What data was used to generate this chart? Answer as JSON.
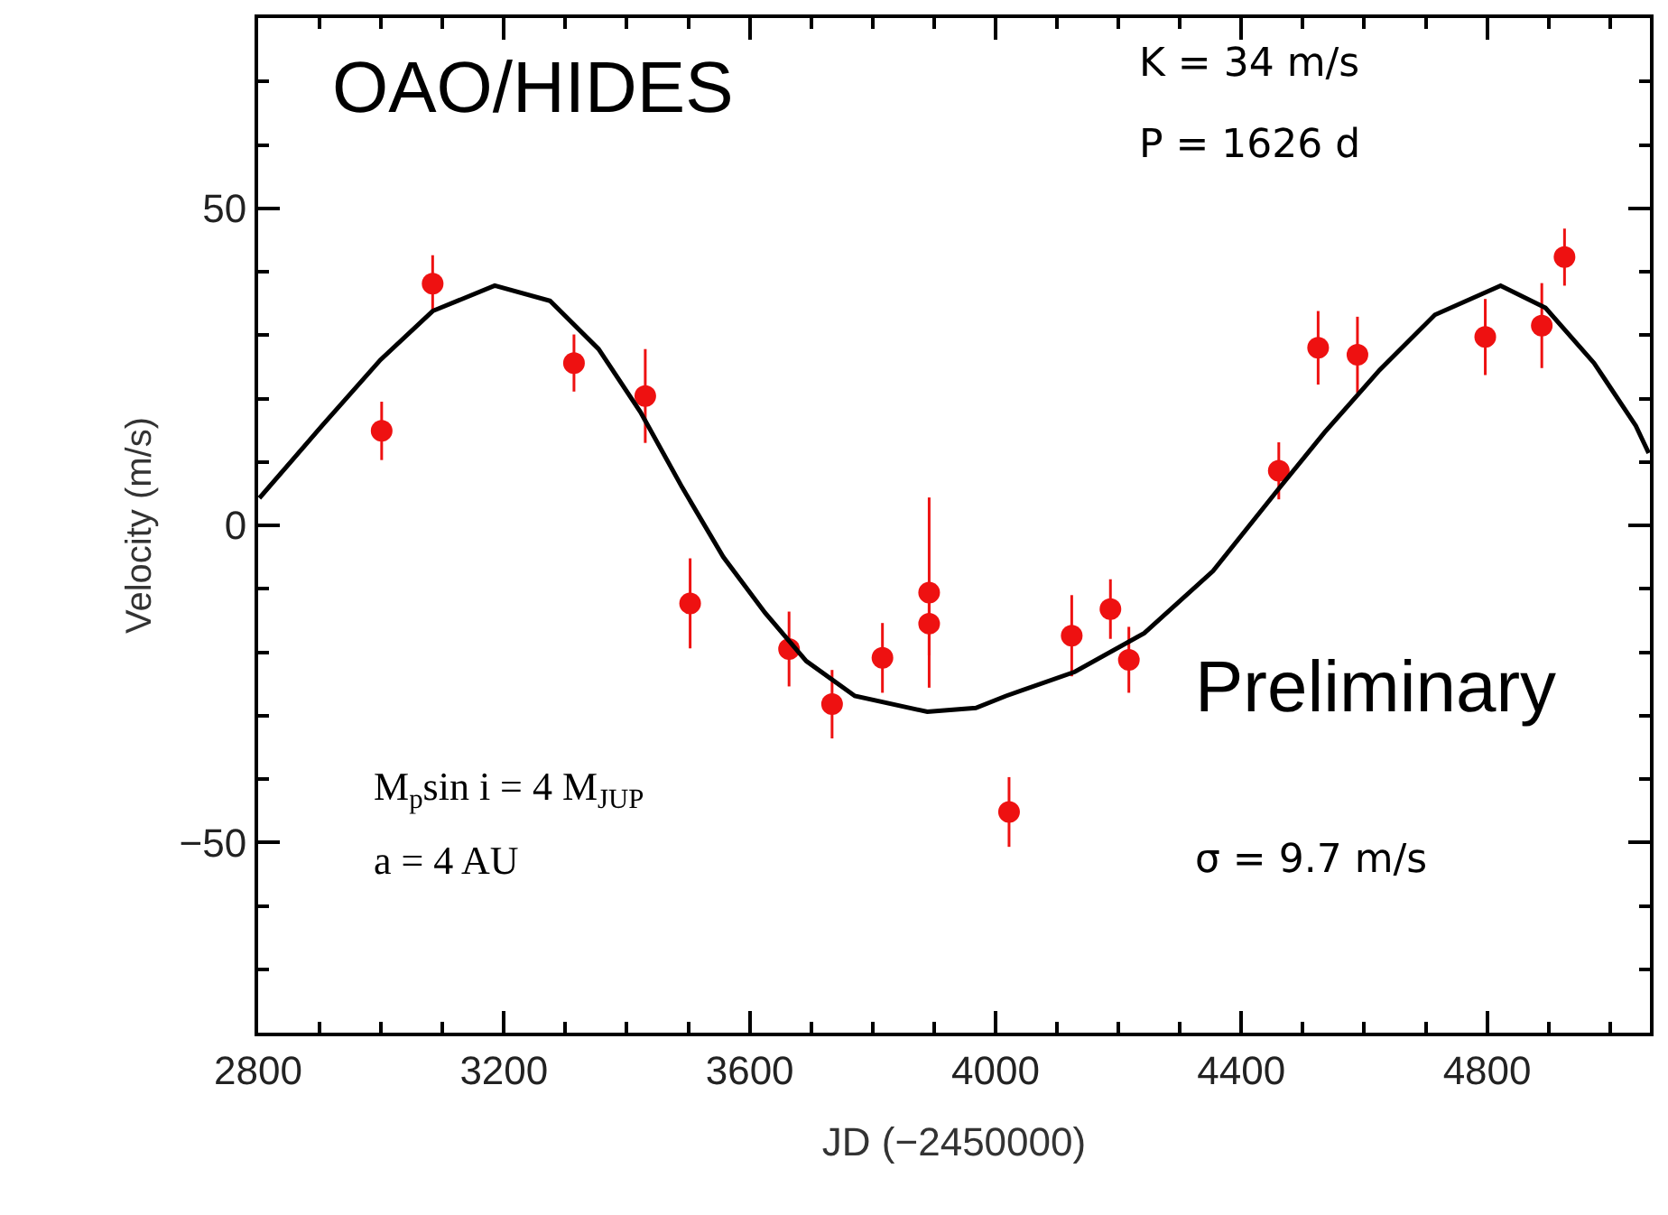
{
  "chart_data": {
    "type": "scatter",
    "xlabel": "JD (−2450000)",
    "ylabel": "Velocity (m/s)",
    "xlim": [
      2800,
      5065
    ],
    "xticks": [
      2800,
      3200,
      3600,
      4000,
      4400,
      4800
    ],
    "ylim": [
      -80,
      80
    ],
    "yticks": [
      {
        "value": -50,
        "label": "−50"
      },
      0,
      50
    ],
    "series": [
      {
        "marker": "circle",
        "color": "#ee1111",
        "x": [
          3001,
          3084,
          3314,
          3430,
          3503,
          3664,
          3734,
          3816,
          3892,
          3892,
          4022,
          4124,
          4187,
          4217,
          4461,
          4525,
          4589,
          4797,
          4889,
          4926
        ],
        "values": [
          14.9,
          38.1,
          25.6,
          20.4,
          -12.3,
          -19.5,
          -28.2,
          -20.9,
          -10.6,
          -15.5,
          -45.2,
          -17.4,
          -13.2,
          -21.2,
          8.6,
          28,
          26.9,
          29.7,
          31.5,
          42.3
        ],
        "errors": [
          4.6,
          4.5,
          4.5,
          7.4,
          7.1,
          5.9,
          5.4,
          5.5,
          15,
          5,
          5.5,
          6.4,
          4.7,
          5.2,
          4.5,
          5.8,
          6,
          6,
          6.7,
          4.5
        ]
      },
      {
        "type": "line",
        "color": "#000000",
        "x": [
          2802,
          2904,
          2999,
          3084,
          3185,
          3275,
          3354,
          3422,
          3490,
          3557,
          3625,
          3692,
          3771,
          3889,
          3968,
          4017,
          4129,
          4242,
          4354,
          4462,
          4535,
          4625,
          4715,
          4822,
          4895,
          4974,
          5042,
          5063
        ],
        "values": [
          4.3,
          15.7,
          26.1,
          33.8,
          37.8,
          35.4,
          27.8,
          17.9,
          6.0,
          -5.0,
          -13.8,
          -21.4,
          -26.9,
          -29.4,
          -28.8,
          -26.9,
          -23.1,
          -17.0,
          -7.2,
          5.9,
          14.6,
          24.5,
          33.2,
          37.8,
          34.3,
          25.6,
          15.7,
          11.4
        ]
      }
    ],
    "annotations": [
      "OAO/HIDES",
      "K = 34 m/s",
      "P = 1626 d",
      "M$_{p}$sin i = 4 M$_{JUP}$",
      "a = 4 AU",
      "Preliminary",
      "σ = 9.7 m/s"
    ]
  }
}
